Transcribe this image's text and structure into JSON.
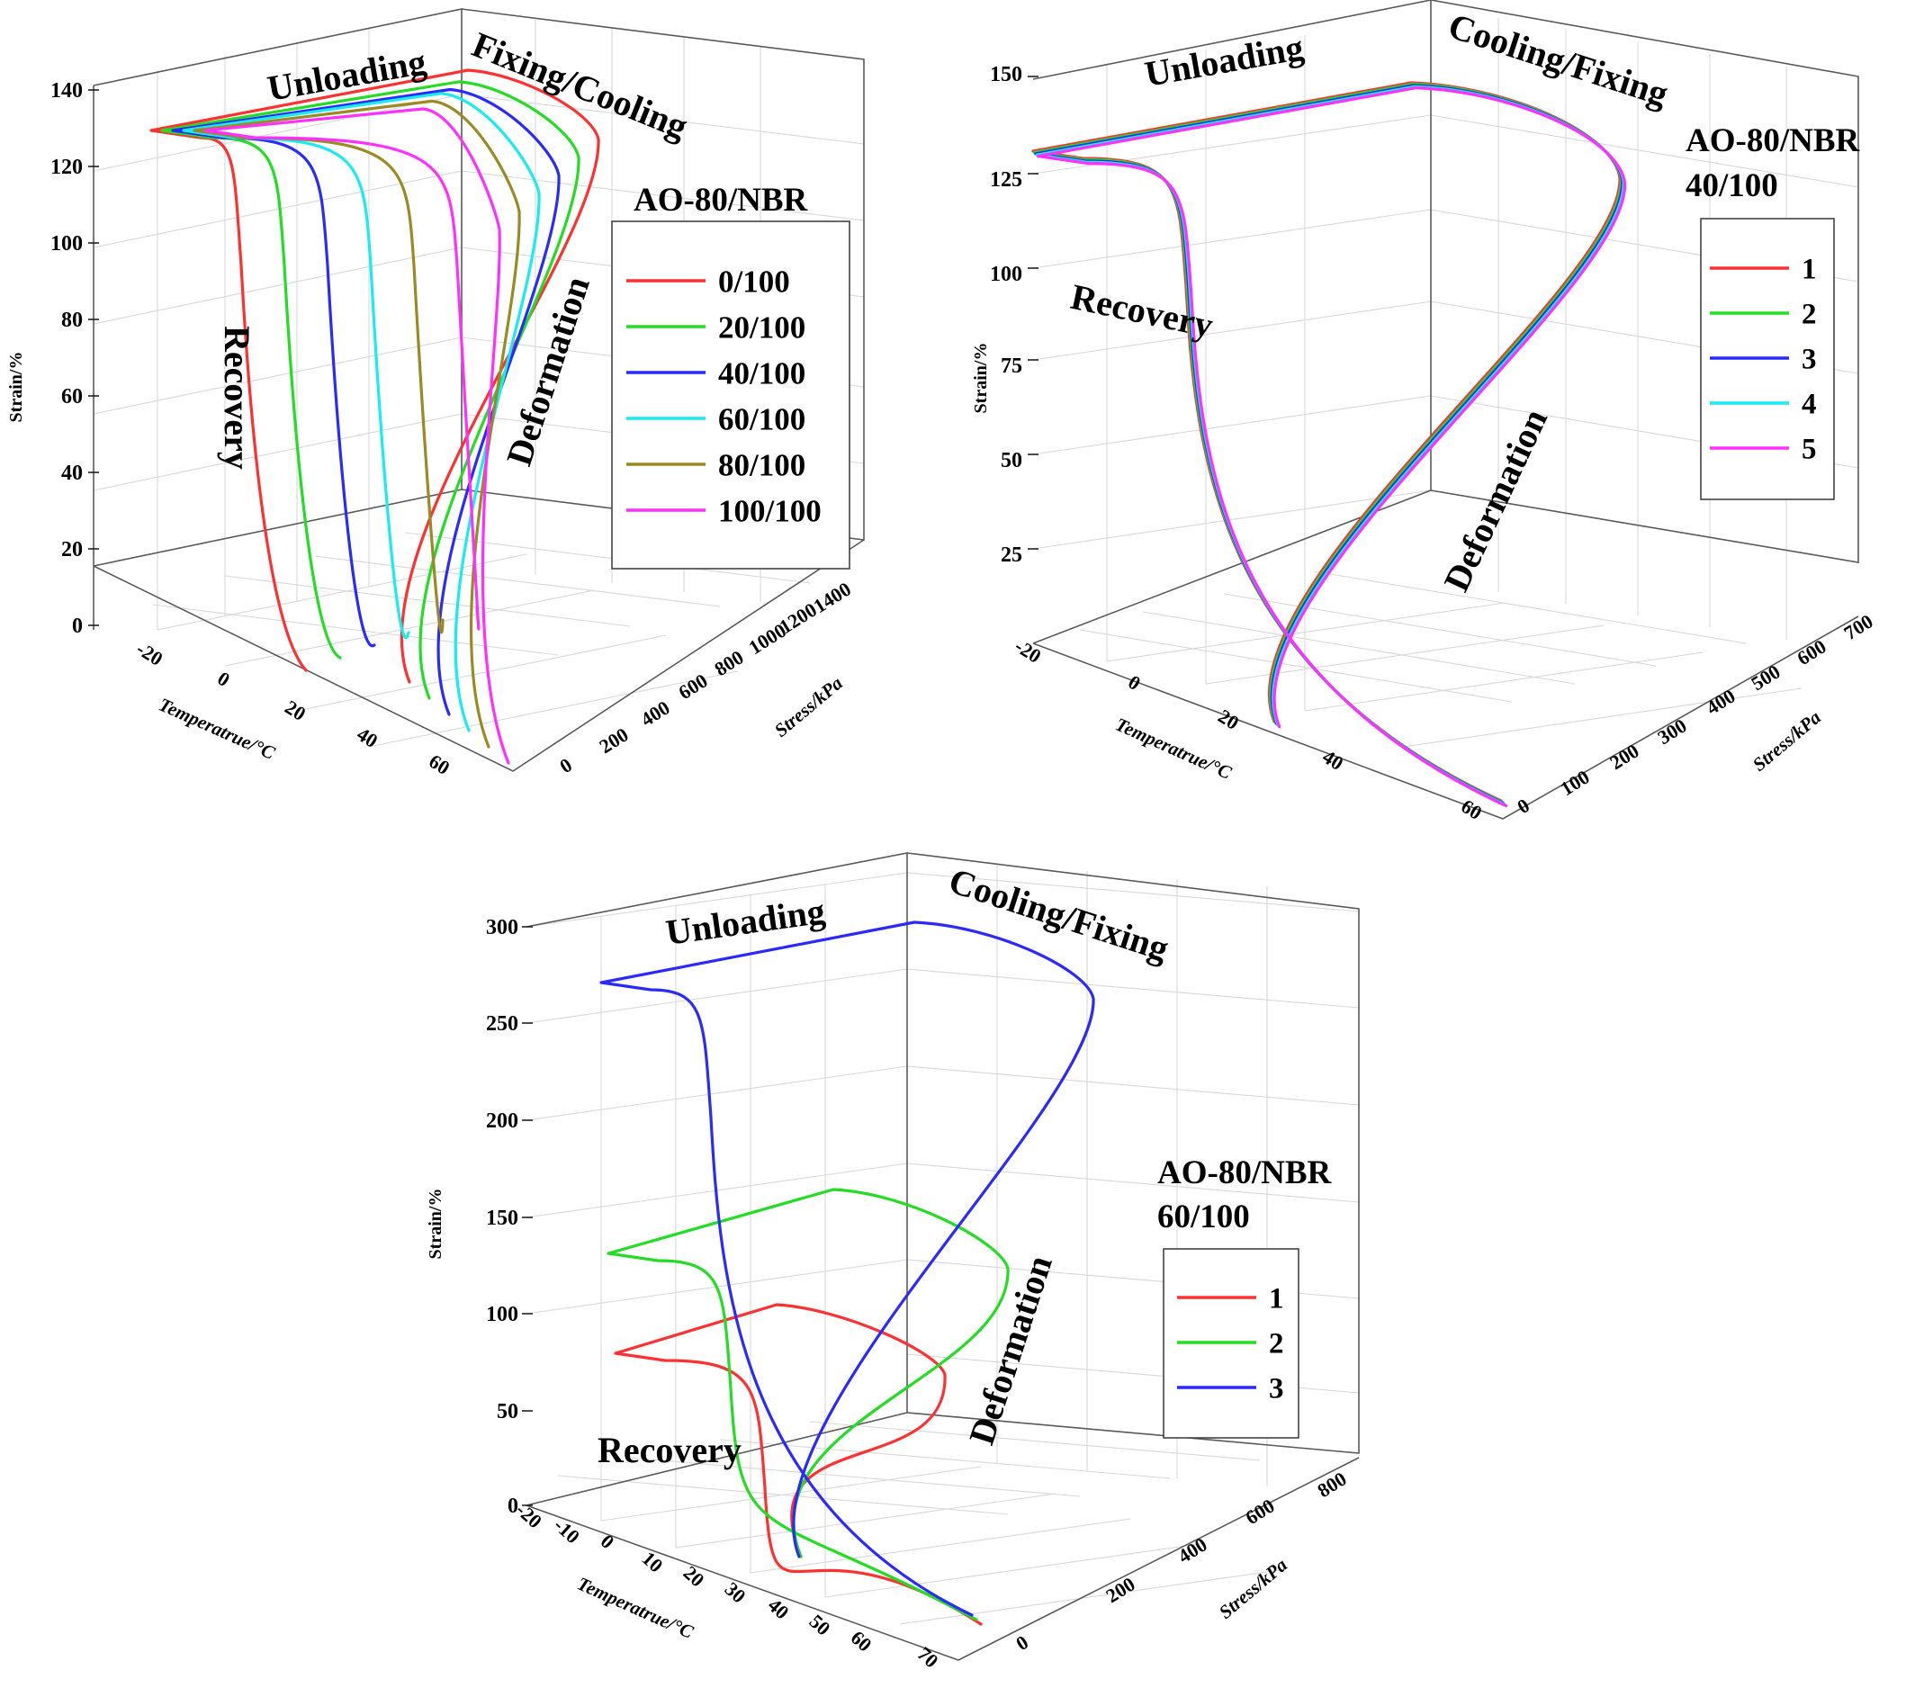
{
  "chart_data": [
    {
      "type": "line3d",
      "panel": "top-left",
      "ylabel": "Strain/%",
      "xlabel": "Temperatrue/°C",
      "zlabel": "Stress/kPa",
      "y_ticks": [
        "0",
        "20",
        "40",
        "60",
        "80",
        "100",
        "120",
        "140"
      ],
      "x_ticks": [
        "-20",
        "0",
        "20",
        "40",
        "60"
      ],
      "z_ticks": [
        "0",
        "200",
        "400",
        "600",
        "800",
        "1000",
        "1200",
        "1400"
      ],
      "ylim": [
        0,
        140
      ],
      "annotations": {
        "unloading": "Unloading",
        "fixing": "Fixing/Cooling",
        "deformation": "Deformation",
        "recovery": "Recovery"
      },
      "legend_title": "AO-80/NBR",
      "series": [
        {
          "name": "0/100",
          "color": "#ff3030",
          "max_strain": 140,
          "recovery_onset_c": -12,
          "max_stress_kpa": 1420
        },
        {
          "name": "20/100",
          "color": "#22dd22",
          "max_strain": 137,
          "recovery_onset_c": -4,
          "max_stress_kpa": 1150
        },
        {
          "name": "40/100",
          "color": "#2a2aff",
          "max_strain": 135,
          "recovery_onset_c": 2,
          "max_stress_kpa": 960
        },
        {
          "name": "60/100",
          "color": "#18ecf0",
          "max_strain": 134,
          "recovery_onset_c": 7,
          "max_stress_kpa": 830
        },
        {
          "name": "80/100",
          "color": "#9a8a24",
          "max_strain": 132,
          "recovery_onset_c": 12,
          "max_stress_kpa": 720
        },
        {
          "name": "100/100",
          "color": "#ff30ff",
          "max_strain": 130,
          "recovery_onset_c": 17,
          "max_stress_kpa": 640
        }
      ]
    },
    {
      "type": "line3d",
      "panel": "top-right",
      "ylabel": "Strain/%",
      "xlabel": "Temperatrue/°C",
      "zlabel": "Stress/kPa",
      "y_ticks": [
        "25",
        "50",
        "75",
        "100",
        "125",
        "150"
      ],
      "x_ticks": [
        "-20",
        "0",
        "20",
        "40",
        "60"
      ],
      "z_ticks": [
        "0",
        "100",
        "200",
        "300",
        "400",
        "500",
        "600",
        "700"
      ],
      "ylim": [
        0,
        150
      ],
      "annotations": {
        "unloading": "Unloading",
        "fixing": "Cooling/Fixing",
        "deformation": "Deformation",
        "recovery": "Recovery"
      },
      "legend_title": "AO-80/NBR",
      "legend_subtitle": "40/100",
      "series": [
        {
          "name": "1",
          "color": "#ff3030",
          "max_strain": 148
        },
        {
          "name": "2",
          "color": "#22dd22",
          "max_strain": 147
        },
        {
          "name": "3",
          "color": "#2a2aff",
          "max_strain": 147
        },
        {
          "name": "4",
          "color": "#18ecf0",
          "max_strain": 146
        },
        {
          "name": "5",
          "color": "#ff30ff",
          "max_strain": 146
        }
      ]
    },
    {
      "type": "line3d",
      "panel": "bottom",
      "ylabel": "Strain/%",
      "xlabel": "Temperatrue/°C",
      "zlabel": "Stress/kPa",
      "y_ticks": [
        "0",
        "50",
        "100",
        "150",
        "200",
        "250",
        "300"
      ],
      "x_ticks": [
        "-20",
        "-10",
        "0",
        "10",
        "20",
        "30",
        "40",
        "50",
        "60",
        "70"
      ],
      "z_ticks": [
        "0",
        "200",
        "400",
        "600",
        "800"
      ],
      "ylim": [
        0,
        300
      ],
      "annotations": {
        "unloading": "Unloading",
        "fixing": "Cooling/Fixing",
        "deformation": "Deformation",
        "recovery": "Recovery"
      },
      "legend_title": "AO-80/NBR",
      "legend_subtitle": "60/100",
      "series": [
        {
          "name": "1",
          "color": "#ff3030",
          "max_strain": 100
        },
        {
          "name": "2",
          "color": "#22dd22",
          "max_strain": 160
        },
        {
          "name": "3",
          "color": "#2a2aff",
          "max_strain": 300
        }
      ]
    }
  ]
}
